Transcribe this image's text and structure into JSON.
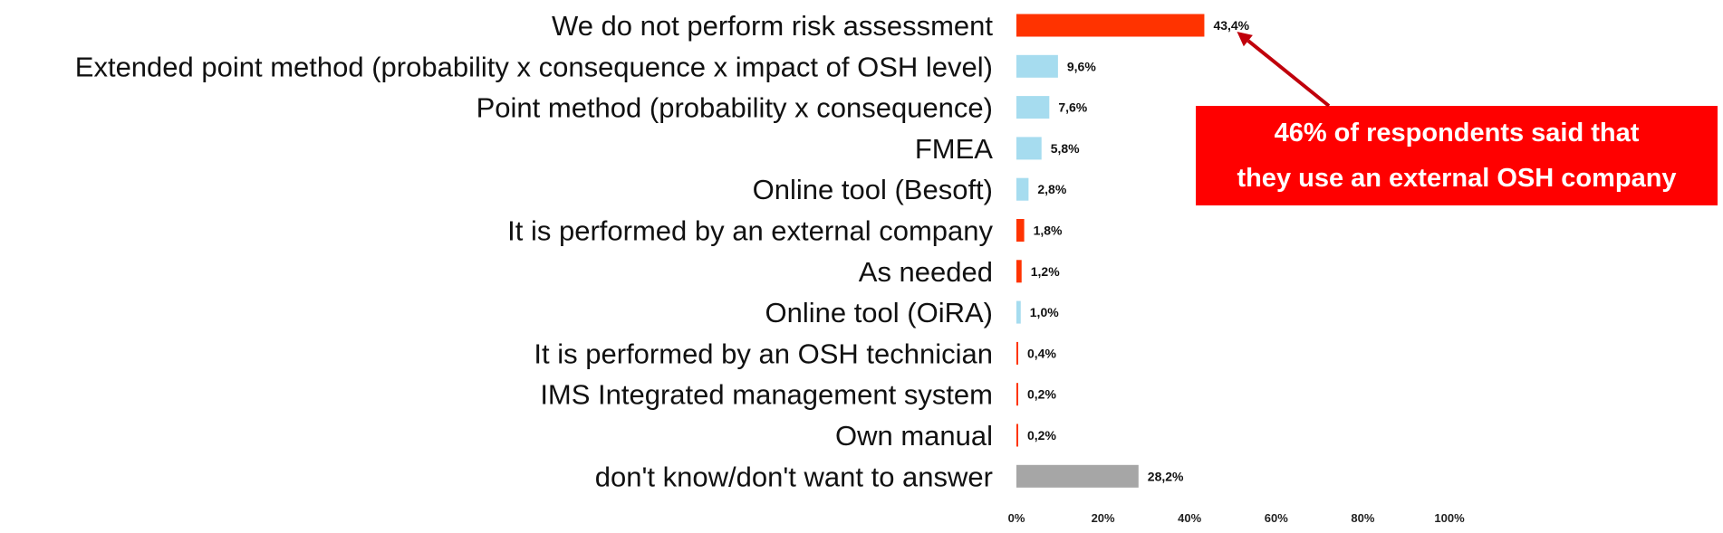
{
  "chart_data": {
    "type": "bar",
    "orientation": "horizontal",
    "categories": [
      "We do not perform risk assessment",
      "Extended point method (probability x consequence x impact of OSH level)",
      "Point method (probability x consequence)",
      "FMEA",
      "Online tool (Besoft)",
      "It is performed by an external company",
      "As needed",
      "Online tool (OiRA)",
      "It is performed by an OSH technician",
      "IMS Integrated management system",
      "Own manual",
      "don't know/don't want to answer"
    ],
    "values": [
      43.4,
      9.6,
      7.6,
      5.8,
      2.8,
      1.8,
      1.2,
      1.0,
      0.4,
      0.2,
      0.2,
      28.2
    ],
    "value_labels": [
      "43,4%",
      "9,6%",
      "7,6%",
      "5,8%",
      "2,8%",
      "1,8%",
      "1,2%",
      "1,0%",
      "0,4%",
      "0,2%",
      "0,2%",
      "28,2%"
    ],
    "bar_colors": [
      "#ff3300",
      "#a6dcef",
      "#a6dcef",
      "#a6dcef",
      "#a6dcef",
      "#ff3300",
      "#ff3300",
      "#a6dcef",
      "#ff3300",
      "#ff3300",
      "#ff3300",
      "#a6a6a6"
    ],
    "xlim": [
      0,
      100
    ],
    "xticks": [
      0,
      20,
      40,
      60,
      80,
      100
    ],
    "xtick_labels": [
      "0%",
      "20%",
      "40%",
      "60%",
      "80%",
      "100%"
    ],
    "grid": false,
    "annotation": {
      "lines": [
        "46% of respondents said that",
        "they use an external OSH company"
      ],
      "box_color": "#ff0000",
      "arrow_color": "#c0000b",
      "points_to": "We do not perform risk assessment"
    }
  }
}
